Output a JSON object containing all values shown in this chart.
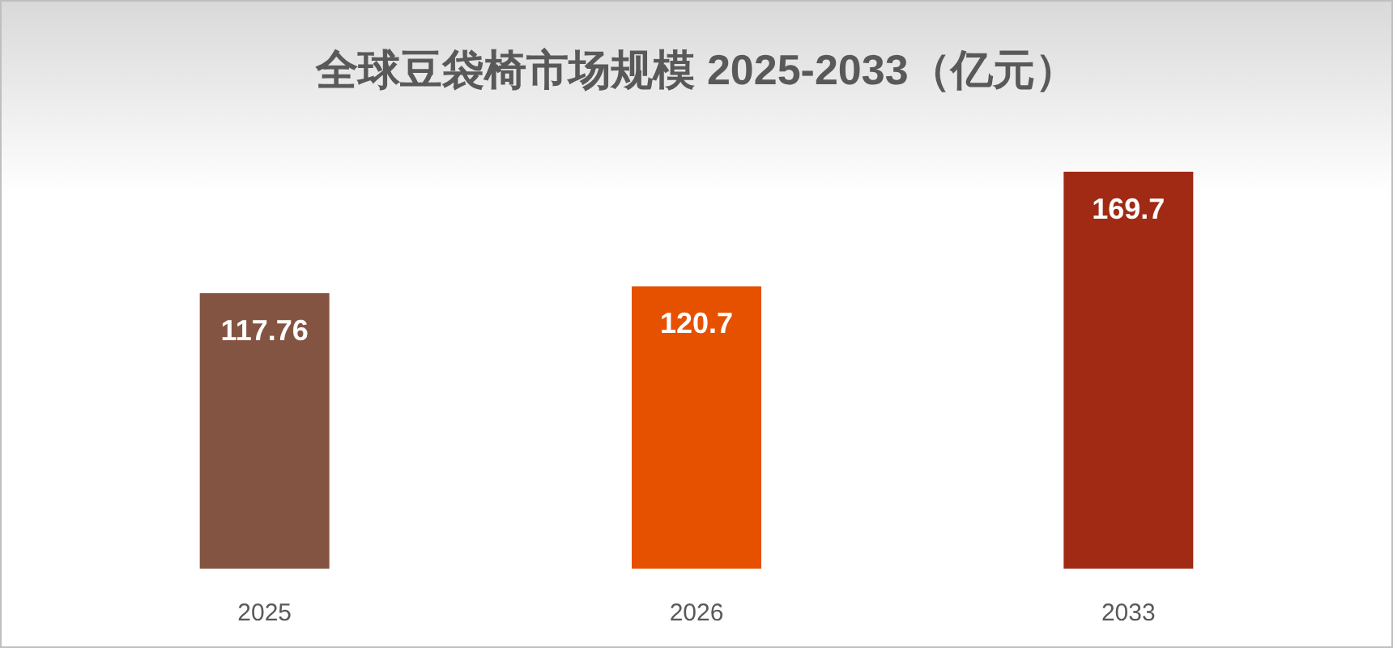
{
  "chart_data": {
    "type": "bar",
    "title": "全球豆袋椅市场规模 2025-2033（亿元）",
    "categories": [
      "2025",
      "2026",
      "2033"
    ],
    "values": [
      117.76,
      120.7,
      169.7
    ],
    "colors": [
      "#845442",
      "#e65100",
      "#a02a14"
    ],
    "data_labels": true
  }
}
